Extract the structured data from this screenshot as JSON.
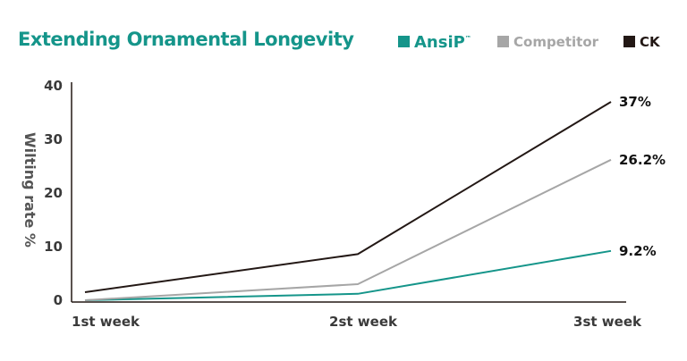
{
  "chart_data": {
    "type": "line",
    "title": "Extending Ornamental Longevity",
    "xlabel": "",
    "ylabel": "Wilting rate %",
    "categories": [
      "1st week",
      "2st week",
      "3st week"
    ],
    "ylim": [
      0,
      40
    ],
    "yticks": [
      0,
      10,
      20,
      30,
      40
    ],
    "grid": false,
    "legend_position": "top-right",
    "series": [
      {
        "name": "AnsiP",
        "trademark": "™",
        "color": "#15958a",
        "values": [
          0,
          1.2,
          9.2
        ],
        "end_label": "9.2%"
      },
      {
        "name": "Competitor",
        "color": "#a6a6a6",
        "values": [
          0,
          3.0,
          26.2
        ],
        "end_label": "26.2%"
      },
      {
        "name": "CK",
        "color": "#231815",
        "values": [
          1.5,
          8.6,
          37
        ],
        "end_label": "37%"
      }
    ]
  },
  "colors": {
    "title": "#15958a",
    "axis": "#231815",
    "tick_text": "#3a3a3a"
  }
}
